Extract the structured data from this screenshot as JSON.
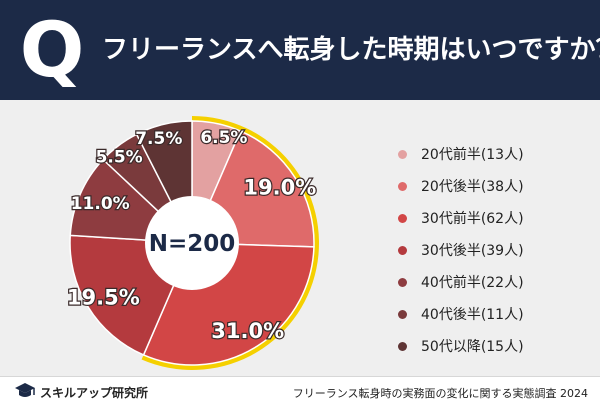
{
  "header": {
    "q_mark": "Q",
    "title": "フリーランスへ転身した時期はいつですか？"
  },
  "chart_data": {
    "type": "pie",
    "title": "フリーランスへ転身した時期はいつですか？",
    "center_label": "N=200",
    "categories": [
      "20代前半",
      "20代後半",
      "30代前半",
      "30代後半",
      "40代前半",
      "40代後半",
      "50代以降"
    ],
    "counts": [
      13,
      38,
      62,
      39,
      22,
      11,
      15
    ],
    "values": [
      6.5,
      19.0,
      31.0,
      19.5,
      11.0,
      5.5,
      7.5
    ],
    "value_labels": [
      "6.5%",
      "19.0%",
      "31.0%",
      "19.5%",
      "11.0%",
      "5.5%",
      "7.5%"
    ],
    "colors": [
      "#e3a1a1",
      "#df6a6a",
      "#d24646",
      "#b43a3e",
      "#8e3c40",
      "#7a3a3c",
      "#5e3434"
    ],
    "highlight_color": "#f5d000",
    "highlight_categories": [
      "20代前半",
      "20代後半",
      "30代前半"
    ],
    "legend_position": "right"
  },
  "legend": {
    "items": [
      {
        "label": "20代前半(13人)"
      },
      {
        "label": "20代後半(38人)"
      },
      {
        "label": "30代前半(62人)"
      },
      {
        "label": "30代後半(39人)"
      },
      {
        "label": "40代前半(22人)"
      },
      {
        "label": "40代後半(11人)"
      },
      {
        "label": "50代以降(15人)"
      }
    ]
  },
  "footer": {
    "logo_text": "スキルアップ研究所",
    "caption": "フリーランス転身時の実務面の変化に関する実態調査 2024"
  }
}
